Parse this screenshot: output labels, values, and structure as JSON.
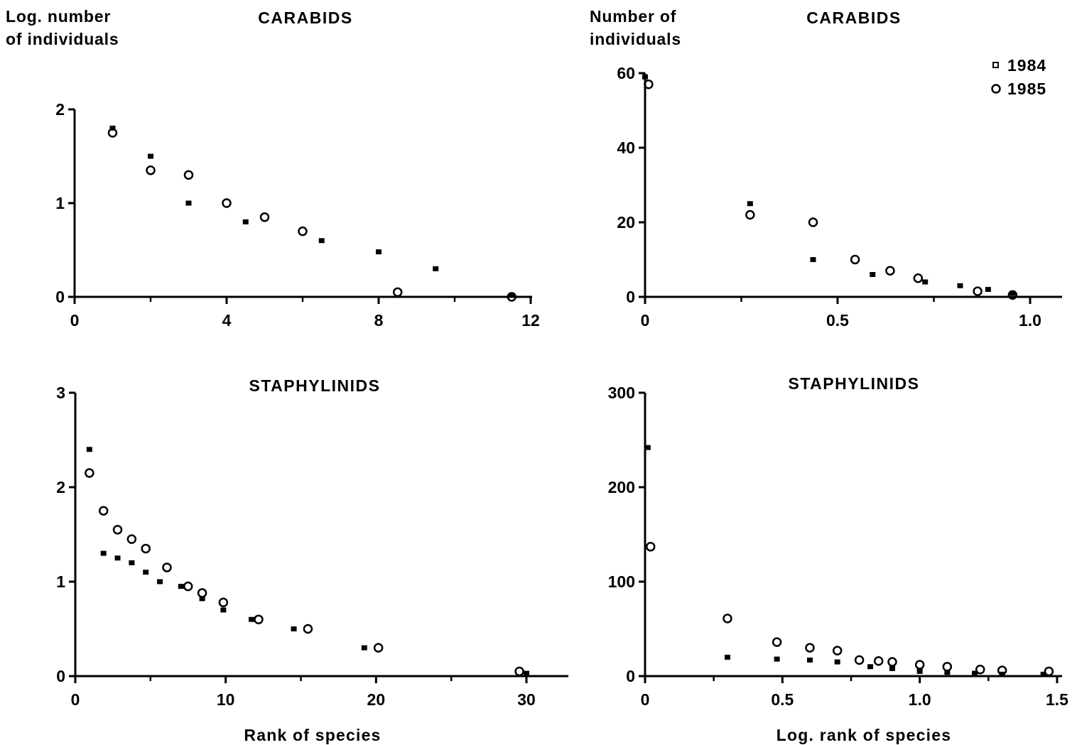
{
  "chart_data": [
    {
      "type": "scatter",
      "title": "CARABIDS",
      "ylabel": [
        "Log. number",
        "of individuals"
      ],
      "xlabel": "",
      "xlim": [
        0,
        12
      ],
      "ylim": [
        0,
        2
      ],
      "xticks": [
        "0",
        "4",
        "8",
        "12"
      ],
      "yticks": [
        "0",
        "1",
        "2"
      ],
      "series": [
        {
          "name": "1984",
          "marker": "filled-square",
          "x": [
            1,
            2,
            3,
            4.5,
            6.5,
            8,
            9.5,
            11.5
          ],
          "y": [
            1.8,
            1.5,
            1.0,
            0.8,
            0.6,
            0.48,
            0.3,
            0.02
          ]
        },
        {
          "name": "1985",
          "marker": "open-circle",
          "x": [
            1,
            2,
            3,
            4,
            5,
            6,
            8.5,
            11.5
          ],
          "y": [
            1.75,
            1.35,
            1.3,
            1.0,
            0.85,
            0.7,
            0.05,
            0.0
          ]
        }
      ]
    },
    {
      "type": "scatter",
      "title": "CARABIDS",
      "ylabel": [
        "Number of",
        "individuals"
      ],
      "xlabel": "",
      "xlim": [
        0,
        1.1
      ],
      "ylim": [
        0,
        60
      ],
      "xticks": [
        "0",
        "0.5",
        "1.0"
      ],
      "yticks": [
        "0",
        "20",
        "40",
        "60"
      ],
      "legend": {
        "position": "top-right",
        "entries": [
          "1984",
          "1985"
        ]
      },
      "series": [
        {
          "name": "1984",
          "marker": "filled-square",
          "x": [
            0,
            0.3,
            0.48,
            0.65,
            0.8,
            0.9,
            0.98,
            1.05
          ],
          "y": [
            59,
            25,
            10,
            6,
            4,
            3,
            2,
            1
          ]
        },
        {
          "name": "1985",
          "marker": "open-circle",
          "x": [
            0.01,
            0.3,
            0.48,
            0.6,
            0.7,
            0.78,
            0.95,
            1.05
          ],
          "y": [
            57,
            22,
            20,
            10,
            7,
            5,
            1.5,
            0.5
          ]
        }
      ]
    },
    {
      "type": "scatter",
      "title": "STAPHYLINIDS",
      "ylabel": [],
      "xlabel": "Rank of species",
      "xlim": [
        0,
        32
      ],
      "ylim": [
        0,
        3
      ],
      "xticks": [
        "0",
        "10",
        "20",
        "30"
      ],
      "yticks": [
        "0",
        "1",
        "2",
        "3"
      ],
      "series": [
        {
          "name": "1984",
          "marker": "filled-square",
          "x": [
            1,
            2,
            3,
            4,
            5,
            6,
            7.5,
            9,
            10.5,
            12.5,
            15.5,
            20.5,
            32
          ],
          "y": [
            2.4,
            1.3,
            1.25,
            1.2,
            1.1,
            1.0,
            0.95,
            0.82,
            0.7,
            0.6,
            0.5,
            0.3,
            0.03
          ]
        },
        {
          "name": "1985",
          "marker": "open-circle",
          "x": [
            1,
            2,
            3,
            4,
            5,
            6.5,
            8,
            9,
            10.5,
            13,
            16.5,
            21.5,
            31.5
          ],
          "y": [
            2.15,
            1.75,
            1.55,
            1.45,
            1.35,
            1.15,
            0.95,
            0.88,
            0.78,
            0.6,
            0.5,
            0.3,
            0.05
          ]
        }
      ]
    },
    {
      "type": "scatter",
      "title": "STAPHYLINIDS",
      "ylabel": [],
      "xlabel": "Log. rank of species",
      "xlim": [
        0,
        1.5
      ],
      "ylim": [
        0,
        300
      ],
      "xticks": [
        "0",
        "0.5",
        "1.0",
        "1.5"
      ],
      "yticks": [
        "0",
        "100",
        "200",
        "300"
      ],
      "series": [
        {
          "name": "1984",
          "marker": "filled-square",
          "x": [
            0.01,
            0.3,
            0.48,
            0.6,
            0.7,
            0.82,
            0.9,
            1.0,
            1.1,
            1.2,
            1.3,
            1.45
          ],
          "y": [
            242,
            20,
            18,
            17,
            15,
            10,
            8,
            5,
            4,
            3,
            2,
            2
          ]
        },
        {
          "name": "1985",
          "marker": "open-circle",
          "x": [
            0.02,
            0.3,
            0.48,
            0.6,
            0.7,
            0.78,
            0.85,
            0.9,
            1.0,
            1.1,
            1.22,
            1.3,
            1.47
          ],
          "y": [
            137,
            61,
            36,
            30,
            27,
            17,
            16,
            15,
            12,
            10,
            7,
            6,
            5
          ]
        }
      ]
    }
  ]
}
